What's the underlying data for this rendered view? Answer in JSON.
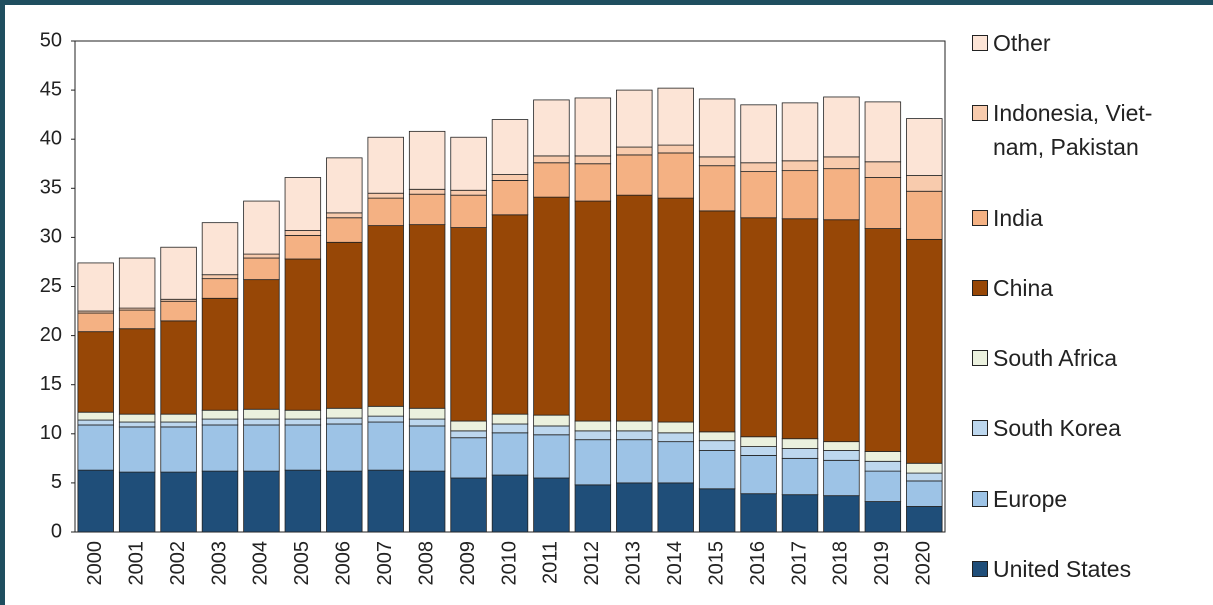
{
  "chart_data": {
    "type": "stacked_bar",
    "categories": [
      "2000",
      "2001",
      "2002",
      "2003",
      "2004",
      "2005",
      "2006",
      "2007",
      "2008",
      "2009",
      "2010",
      "2011",
      "2012",
      "2013",
      "2014",
      "2015",
      "2016",
      "2017",
      "2018",
      "2019",
      "2020"
    ],
    "series": [
      {
        "name": "United States",
        "color": "#1f4e79",
        "values": [
          6.3,
          6.1,
          6.1,
          6.2,
          6.2,
          6.3,
          6.2,
          6.3,
          6.2,
          5.5,
          5.8,
          5.5,
          4.8,
          5.0,
          5.0,
          4.4,
          3.9,
          3.8,
          3.7,
          3.1,
          2.6
        ]
      },
      {
        "name": "Europe",
        "color": "#9dc3e6",
        "values": [
          4.6,
          4.6,
          4.6,
          4.7,
          4.7,
          4.6,
          4.8,
          4.9,
          4.6,
          4.1,
          4.3,
          4.4,
          4.6,
          4.4,
          4.2,
          3.9,
          3.9,
          3.7,
          3.6,
          3.1,
          2.6
        ]
      },
      {
        "name": "South Korea",
        "color": "#bdd7ee",
        "values": [
          0.5,
          0.5,
          0.5,
          0.6,
          0.6,
          0.6,
          0.6,
          0.6,
          0.7,
          0.7,
          0.9,
          0.9,
          0.9,
          0.9,
          0.9,
          1.0,
          0.9,
          1.0,
          1.0,
          1.0,
          0.8
        ]
      },
      {
        "name": "South Africa",
        "color": "#ebf1de",
        "values": [
          0.8,
          0.8,
          0.8,
          0.9,
          1.0,
          0.9,
          1.0,
          1.0,
          1.1,
          1.0,
          1.0,
          1.1,
          1.0,
          1.0,
          1.1,
          0.9,
          1.0,
          1.0,
          0.9,
          1.0,
          1.0
        ]
      },
      {
        "name": "China",
        "color": "#974706",
        "values": [
          8.2,
          8.7,
          9.5,
          11.4,
          13.2,
          15.4,
          16.9,
          18.4,
          18.7,
          19.7,
          20.3,
          22.2,
          22.4,
          23.0,
          22.8,
          22.5,
          22.3,
          22.4,
          22.6,
          22.7,
          22.8
        ]
      },
      {
        "name": "India",
        "color": "#f4b183",
        "values": [
          1.9,
          1.9,
          2.0,
          2.0,
          2.2,
          2.4,
          2.5,
          2.8,
          3.1,
          3.3,
          3.5,
          3.5,
          3.8,
          4.1,
          4.6,
          4.6,
          4.7,
          4.9,
          5.2,
          5.2,
          4.9
        ]
      },
      {
        "name": "Indonesia, Viet-nam, Pakistan",
        "color": "#f8cbad",
        "values": [
          0.2,
          0.2,
          0.2,
          0.4,
          0.4,
          0.5,
          0.5,
          0.5,
          0.5,
          0.5,
          0.6,
          0.7,
          0.8,
          0.8,
          0.8,
          0.9,
          0.9,
          1.0,
          1.2,
          1.6,
          1.6
        ]
      },
      {
        "name": "Other",
        "color": "#fce4d6",
        "values": [
          4.9,
          5.1,
          5.3,
          5.3,
          5.4,
          5.4,
          5.6,
          5.7,
          5.9,
          5.4,
          5.6,
          5.7,
          5.9,
          5.8,
          5.8,
          5.9,
          5.9,
          5.9,
          6.1,
          6.1,
          5.8
        ]
      }
    ],
    "ylim": [
      0,
      50
    ],
    "yticks": [
      0,
      5,
      10,
      15,
      20,
      25,
      30,
      35,
      40,
      45,
      50
    ],
    "grid": false
  }
}
